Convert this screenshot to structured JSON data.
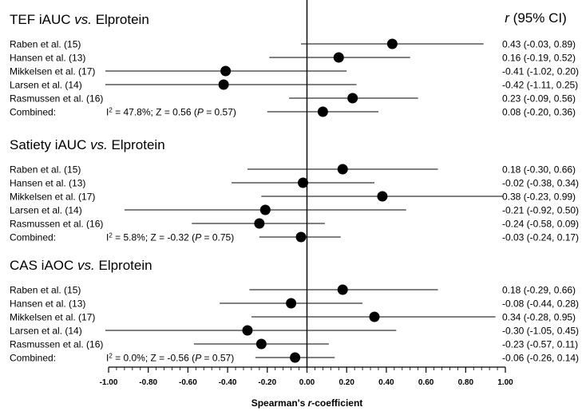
{
  "chart_data": {
    "type": "forest",
    "header": {
      "r_symbol": "r",
      "rest": " (95% CI)"
    },
    "axis": {
      "label_prefix": "Spearman's ",
      "label_symbol": "r",
      "label_suffix": "-coefficient",
      "xlim": [
        -1.0,
        1.0
      ],
      "ticks": [
        "-1.00",
        "-0.80",
        "-0.60",
        "-0.40",
        "-0.20",
        "0.00",
        "0.20",
        "0.40",
        "0.60",
        "0.80",
        "1.00"
      ]
    },
    "panels": [
      {
        "title_a": "TEF iAUC ",
        "title_vs": "vs.",
        "title_b": " Elprotein",
        "rows": [
          {
            "study": "Raben et al. (15)",
            "r": 0.43,
            "lo": -0.03,
            "hi": 0.89,
            "ci_text": "0.43 (-0.03, 0.89)"
          },
          {
            "study": "Hansen et al. (13)",
            "r": 0.16,
            "lo": -0.19,
            "hi": 0.52,
            "ci_text": "0.16 (-0.19, 0.52)"
          },
          {
            "study": "Mikkelsen et al. (17)",
            "r": -0.41,
            "lo": -1.02,
            "hi": 0.2,
            "ci_text": "-0.41 (-1.02, 0.20)"
          },
          {
            "study": "Larsen et al. (14)",
            "r": -0.42,
            "lo": -1.11,
            "hi": 0.25,
            "ci_text": "-0.42 (-1.11, 0.25)"
          },
          {
            "study": "Rasmussen et al. (16)",
            "r": 0.23,
            "lo": -0.09,
            "hi": 0.56,
            "ci_text": "0.23 (-0.09, 0.56)"
          }
        ],
        "combined": {
          "label": "Combined:",
          "i2_prefix": "I",
          "i2_sup": "2",
          "stat_main": " = 47.8%;  Z = 0.56 (",
          "p_symbol": "P",
          "p_rest": " = 0.57)",
          "r": 0.08,
          "lo": -0.2,
          "hi": 0.36,
          "ci_text": "0.08 (-0.20, 0.36)"
        }
      },
      {
        "title_a": "Satiety iAUC ",
        "title_vs": "vs.",
        "title_b": " Elprotein",
        "rows": [
          {
            "study": "Raben et al. (15)",
            "r": 0.18,
            "lo": -0.3,
            "hi": 0.66,
            "ci_text": "0.18 (-0.30, 0.66)"
          },
          {
            "study": "Hansen et al. (13)",
            "r": -0.02,
            "lo": -0.38,
            "hi": 0.34,
            "ci_text": "-0.02 (-0.38, 0.34)"
          },
          {
            "study": "Mikkelsen et al. (17)",
            "r": 0.38,
            "lo": -0.23,
            "hi": 0.99,
            "ci_text": "0.38 (-0.23, 0.99)"
          },
          {
            "study": "Larsen et al. (14)",
            "r": -0.21,
            "lo": -0.92,
            "hi": 0.5,
            "ci_text": "-0.21 (-0.92, 0.50)"
          },
          {
            "study": "Rasmussen et al. (16)",
            "r": -0.24,
            "lo": -0.58,
            "hi": 0.09,
            "ci_text": "-0.24 (-0.58, 0.09)"
          }
        ],
        "combined": {
          "label": "Combined:",
          "i2_prefix": "I",
          "i2_sup": "2",
          "stat_main": " = 5.8%;  Z = -0.32 (",
          "p_symbol": "P",
          "p_rest": " = 0.75)",
          "r": -0.03,
          "lo": -0.24,
          "hi": 0.17,
          "ci_text": "-0.03 (-0.24, 0.17)"
        }
      },
      {
        "title_a": "CAS iAOC ",
        "title_vs": "vs.",
        "title_b": " Elprotein",
        "rows": [
          {
            "study": "Raben et al. (15)",
            "r": 0.18,
            "lo": -0.29,
            "hi": 0.66,
            "ci_text": "0.18 (-0.29, 0.66)"
          },
          {
            "study": "Hansen et al. (13)",
            "r": -0.08,
            "lo": -0.44,
            "hi": 0.28,
            "ci_text": "-0.08 (-0.44, 0.28)"
          },
          {
            "study": "Mikkelsen et al. (17)",
            "r": 0.34,
            "lo": -0.28,
            "hi": 0.95,
            "ci_text": "0.34 (-0.28, 0.95)"
          },
          {
            "study": "Larsen et al. (14)",
            "r": -0.3,
            "lo": -1.05,
            "hi": 0.45,
            "ci_text": "-0.30 (-1.05, 0.45)"
          },
          {
            "study": "Rasmussen et al. (16)",
            "r": -0.23,
            "lo": -0.57,
            "hi": 0.11,
            "ci_text": "-0.23 (-0.57, 0.11)"
          }
        ],
        "combined": {
          "label": "Combined:",
          "i2_prefix": "I",
          "i2_sup": "2",
          "stat_main": " = 0.0%;  Z = -0.56 (",
          "p_symbol": "P",
          "p_rest": " = 0.57)",
          "r": -0.06,
          "lo": -0.26,
          "hi": 0.14,
          "ci_text": "-0.06 (-0.26, 0.14)"
        }
      }
    ]
  }
}
